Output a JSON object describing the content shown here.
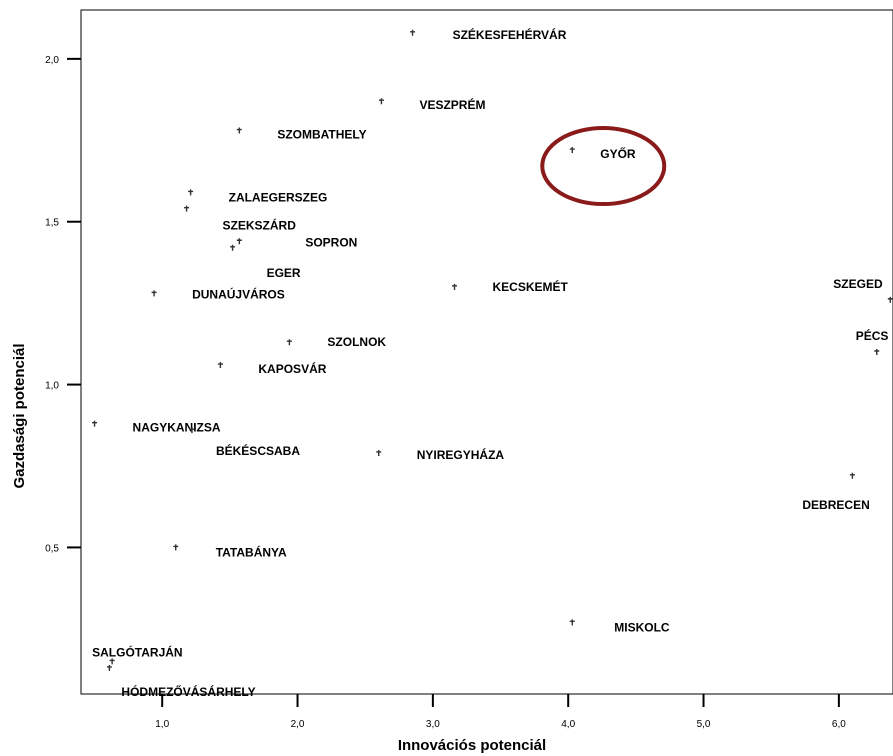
{
  "chart_data": {
    "type": "scatter",
    "xlabel": "Innovációs potenciál",
    "ylabel": "Gazdasági potenciál",
    "xlim": [
      0.4,
      6.4
    ],
    "ylim": [
      0.05,
      2.15
    ],
    "x_ticks": [
      {
        "value": 1.0,
        "label": "1,0"
      },
      {
        "value": 2.0,
        "label": "2,0"
      },
      {
        "value": 3.0,
        "label": "3,0"
      },
      {
        "value": 4.0,
        "label": "4,0"
      },
      {
        "value": 5.0,
        "label": "5,0"
      },
      {
        "value": 6.0,
        "label": "6,0"
      }
    ],
    "y_ticks": [
      {
        "value": 0.5,
        "label": "0,5"
      },
      {
        "value": 1.0,
        "label": "1,0"
      },
      {
        "value": 1.5,
        "label": "1,5"
      },
      {
        "value": 2.0,
        "label": "2,0"
      }
    ],
    "grid": false,
    "highlight": {
      "city": "GYŐR",
      "color": "#8b1a1a",
      "shape": "ellipse"
    },
    "points": [
      {
        "label": "SZÉKESFEHÉRVÁR",
        "x": 2.85,
        "y": 2.08
      },
      {
        "label": "VESZPRÉM",
        "x": 2.62,
        "y": 1.87
      },
      {
        "label": "SZOMBATHELY",
        "x": 1.57,
        "y": 1.78
      },
      {
        "label": "GYŐR",
        "x": 4.03,
        "y": 1.72
      },
      {
        "label": "ZALAEGERSZEG",
        "x": 1.21,
        "y": 1.59
      },
      {
        "label": "SZEKSZÁRD",
        "x": 1.18,
        "y": 1.54
      },
      {
        "label": "SOPRON",
        "x": 1.57,
        "y": 1.44
      },
      {
        "label": "EGER",
        "x": 1.52,
        "y": 1.42
      },
      {
        "label": "KECSKEMÉT",
        "x": 3.16,
        "y": 1.3
      },
      {
        "label": "DUNAÚJVÁROS",
        "x": 0.94,
        "y": 1.28
      },
      {
        "label": "SZEGED",
        "x": 6.38,
        "y": 1.26
      },
      {
        "label": "SZOLNOK",
        "x": 1.94,
        "y": 1.13
      },
      {
        "label": "PÉCS",
        "x": 6.28,
        "y": 1.1
      },
      {
        "label": "KAPOSVÁR",
        "x": 1.43,
        "y": 1.06
      },
      {
        "label": "NAGYKANIZSA",
        "x": 0.5,
        "y": 0.88
      },
      {
        "label": "BÉKÉSCSABA",
        "x": 1.22,
        "y": 0.86
      },
      {
        "label": "NYIREGYHÁZA",
        "x": 2.6,
        "y": 0.79
      },
      {
        "label": "DEBRECEN",
        "x": 6.1,
        "y": 0.72
      },
      {
        "label": "TATABÁNYA",
        "x": 1.1,
        "y": 0.5
      },
      {
        "label": "MISKOLC",
        "x": 4.03,
        "y": 0.27
      },
      {
        "label": "SALGÓTARJÁN",
        "x": 0.63,
        "y": 0.15
      },
      {
        "label": "HÓDMEZŐVÁSÁRHELY",
        "x": 0.61,
        "y": 0.13
      }
    ]
  }
}
